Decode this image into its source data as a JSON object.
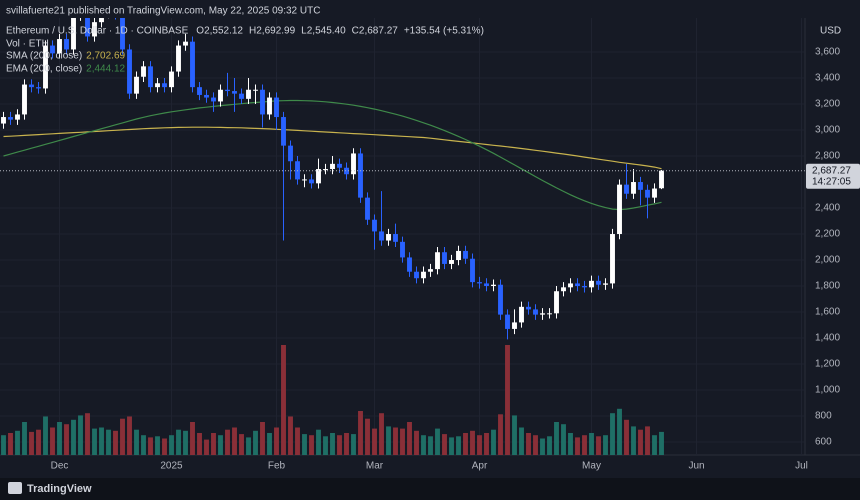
{
  "chart_data": {
    "type": "candlestick",
    "published": "svillafuerte21 published on TradingView.com, May 22, 2025 09:32 UTC",
    "symbol": "Ethereum / U.S. Dollar · 1D · COINBASE",
    "ohlc_legend": [
      {
        "label": "O",
        "value": "2,552.12"
      },
      {
        "label": "H",
        "value": "2,692.99"
      },
      {
        "label": "L",
        "value": "2,545.40"
      },
      {
        "label": "C",
        "value": "2,687.27"
      }
    ],
    "change": "+135.54 (+5.31%)",
    "volume_label": "Vol · ETH",
    "currency": "USD",
    "footer": "TradingView",
    "up_color": "#ffffff",
    "down_color": "#2962ff",
    "vol_up_color": "#1f6f66",
    "vol_down_color": "#8a2f38",
    "grid": true,
    "categories": [
      null,
      null,
      null,
      null,
      null,
      null,
      null,
      null,
      "Dec",
      null,
      null,
      null,
      null,
      null,
      null,
      null,
      null,
      null,
      null,
      null,
      null,
      null,
      null,
      null,
      "2025",
      null,
      null,
      null,
      null,
      null,
      null,
      null,
      null,
      null,
      null,
      null,
      null,
      null,
      null,
      "Feb",
      null,
      null,
      null,
      null,
      null,
      null,
      null,
      null,
      null,
      null,
      null,
      null,
      null,
      "Mar",
      null,
      null,
      null,
      null,
      null,
      null,
      null,
      null,
      null,
      null,
      null,
      null,
      null,
      null,
      "Apr",
      null,
      null,
      null,
      null,
      null,
      null,
      null,
      null,
      null,
      null,
      null,
      null,
      null,
      null,
      null,
      "May",
      null,
      null,
      null,
      null,
      null,
      null,
      null,
      null,
      null,
      null,
      null,
      null,
      null,
      null,
      "Jun",
      null,
      null,
      null,
      null,
      null,
      null,
      null,
      null,
      null,
      null,
      null,
      null,
      null,
      null,
      "Jul"
    ],
    "open": [
      3050,
      3100,
      3080,
      3120,
      3350,
      3330,
      3320,
      3650,
      3590,
      3700,
      3620,
      3880,
      4000,
      3720,
      3830,
      3900,
      3960,
      3890,
      3620,
      3280,
      3410,
      3490,
      3330,
      3360,
      3330,
      3450,
      3650,
      3680,
      3330,
      3270,
      3250,
      3220,
      3310,
      3300,
      3280,
      3240,
      3310,
      3310,
      3120,
      3250,
      3100,
      2880,
      2760,
      2620,
      2620,
      2590,
      2700,
      2700,
      2740,
      2710,
      2660,
      2820,
      2480,
      2310,
      2220,
      2150,
      2200,
      2140,
      2020,
      1910,
      1860,
      1910,
      1930,
      2060,
      1970,
      2000,
      2070,
      2010,
      1830,
      1820,
      1800,
      1810,
      1580,
      1470,
      1520,
      1640,
      1620,
      1580,
      1590,
      1590,
      1760,
      1790,
      1820,
      1800,
      1790,
      1840,
      1810,
      1820,
      2200,
      2580,
      2510,
      2600,
      2540,
      2480,
      2552.12,
      null,
      null,
      null,
      null,
      null,
      null,
      null,
      null,
      null,
      null,
      null,
      null,
      null,
      null,
      null,
      null,
      null,
      null,
      null,
      null
    ],
    "high": [
      3140,
      3140,
      3160,
      3390,
      3390,
      3370,
      3690,
      3690,
      3740,
      3740,
      3920,
      4090,
      4040,
      3870,
      3940,
      4000,
      4000,
      3930,
      3660,
      3450,
      3530,
      3530,
      3400,
      3400,
      3490,
      3690,
      3740,
      3720,
      3370,
      3310,
      3290,
      3350,
      3440,
      3400,
      3320,
      3400,
      3350,
      3350,
      3290,
      3290,
      3140,
      2920,
      2800,
      2660,
      2660,
      2780,
      2740,
      2800,
      2780,
      2750,
      2860,
      2860,
      2520,
      2350,
      2530,
      2240,
      2280,
      2180,
      2060,
      1950,
      1950,
      1970,
      2100,
      2100,
      2040,
      2110,
      2110,
      2050,
      1870,
      1860,
      1850,
      1850,
      1620,
      1620,
      1680,
      1680,
      1660,
      1630,
      1630,
      1800,
      1830,
      1860,
      1860,
      1840,
      1880,
      1880,
      1860,
      2240,
      2620,
      2740,
      2700,
      2640,
      2580,
      2590,
      2692.99,
      null,
      null,
      null,
      null,
      null,
      null,
      null,
      null,
      null,
      null,
      null,
      null,
      null,
      null,
      null,
      null,
      null,
      null,
      null,
      null
    ],
    "low": [
      3010,
      3040,
      3040,
      3080,
      3290,
      3280,
      3280,
      3550,
      3550,
      3580,
      3580,
      3840,
      3680,
      3680,
      3790,
      3860,
      3850,
      3580,
      3240,
      3240,
      3370,
      3290,
      3290,
      3290,
      3290,
      3410,
      3610,
      3290,
      3230,
      3210,
      3140,
      3180,
      3260,
      3140,
      3200,
      3200,
      3200,
      3020,
      3080,
      3000,
      2150,
      2620,
      2580,
      2560,
      2550,
      2550,
      2660,
      2660,
      2670,
      2620,
      2620,
      2440,
      2270,
      2080,
      2110,
      2110,
      2100,
      1980,
      1870,
      1820,
      1820,
      1870,
      1890,
      1930,
      1930,
      1960,
      1970,
      1790,
      1780,
      1760,
      1760,
      1540,
      1390,
      1430,
      1480,
      1580,
      1540,
      1540,
      1550,
      1550,
      1720,
      1750,
      1760,
      1750,
      1750,
      1770,
      1770,
      1780,
      2160,
      2470,
      2470,
      2420,
      2320,
      2440,
      2545.4,
      null,
      null,
      null,
      null,
      null,
      null,
      null,
      null,
      null,
      null,
      null,
      null,
      null,
      null,
      null,
      null,
      null,
      null,
      null,
      null
    ],
    "close": [
      3100,
      3080,
      3120,
      3350,
      3330,
      3320,
      3650,
      3590,
      3700,
      3620,
      3880,
      4000,
      3720,
      3830,
      3900,
      3960,
      3890,
      3620,
      3280,
      3410,
      3490,
      3330,
      3360,
      3330,
      3450,
      3650,
      3680,
      3330,
      3270,
      3250,
      3220,
      3310,
      3300,
      3280,
      3240,
      3310,
      3310,
      3120,
      3250,
      3100,
      2880,
      2760,
      2620,
      2620,
      2590,
      2700,
      2700,
      2740,
      2710,
      2660,
      2820,
      2480,
      2310,
      2220,
      2150,
      2200,
      2140,
      2020,
      1910,
      1860,
      1910,
      1930,
      2060,
      1970,
      2000,
      2070,
      2010,
      1830,
      1820,
      1800,
      1810,
      1580,
      1470,
      1520,
      1640,
      1620,
      1580,
      1590,
      1590,
      1760,
      1790,
      1820,
      1800,
      1790,
      1840,
      1810,
      1820,
      2200,
      2580,
      2510,
      2600,
      2540,
      2480,
      2550,
      2687.27,
      null,
      null,
      null,
      null,
      null,
      null,
      null,
      null,
      null,
      null,
      null,
      null,
      null,
      null,
      null,
      null,
      null,
      null,
      null,
      null
    ],
    "volume": [
      180,
      200,
      220,
      300,
      210,
      230,
      350,
      250,
      300,
      280,
      320,
      360,
      380,
      240,
      250,
      230,
      220,
      330,
      350,
      230,
      180,
      160,
      170,
      150,
      180,
      230,
      220,
      300,
      200,
      140,
      200,
      180,
      230,
      250,
      190,
      160,
      220,
      300,
      200,
      250,
      1000,
      350,
      250,
      190,
      180,
      230,
      170,
      200,
      180,
      200,
      190,
      400,
      330,
      240,
      380,
      260,
      250,
      240,
      300,
      220,
      180,
      170,
      240,
      190,
      160,
      170,
      200,
      220,
      180,
      200,
      230,
      370,
      1000,
      360,
      250,
      200,
      180,
      150,
      170,
      300,
      280,
      200,
      160,
      180,
      200,
      170,
      180,
      380,
      420,
      320,
      260,
      230,
      260,
      180,
      210,
      null,
      null,
      null,
      null,
      null,
      null,
      null,
      null,
      null,
      null,
      null,
      null,
      null,
      null,
      null,
      null,
      null,
      null,
      null,
      null
    ],
    "indicators": [
      {
        "name": "SMA (200, close)",
        "color": "#c8b34e",
        "last": "2,702.69",
        "values": [
          2950,
          2953,
          2956,
          2959,
          2962,
          2965,
          2968,
          2971,
          2974,
          2977,
          2980,
          2983,
          2986,
          2989,
          2992,
          2995,
          2998,
          3001,
          3004,
          3007,
          3010,
          3013,
          3015,
          3017,
          3019,
          3020,
          3021,
          3022,
          3022,
          3022,
          3021,
          3020,
          3019,
          3018,
          3017,
          3015,
          3013,
          3011,
          3009,
          3006,
          3003,
          3000,
          2997,
          2994,
          2991,
          2988,
          2985,
          2982,
          2979,
          2976,
          2973,
          2970,
          2967,
          2964,
          2961,
          2958,
          2955,
          2952,
          2949,
          2946,
          2943,
          2937,
          2931,
          2925,
          2919,
          2913,
          2907,
          2901,
          2895,
          2889,
          2883,
          2877,
          2871,
          2865,
          2858,
          2851,
          2844,
          2837,
          2830,
          2823,
          2816,
          2808,
          2800,
          2792,
          2784,
          2776,
          2768,
          2760,
          2752,
          2745,
          2738,
          2731,
          2723,
          2715,
          2702.69,
          null,
          null,
          null,
          null,
          null,
          null,
          null,
          null,
          null,
          null,
          null,
          null,
          null,
          null,
          null,
          null,
          null,
          null,
          null,
          null
        ]
      },
      {
        "name": "EMA (200, close)",
        "color": "#3f8a4a",
        "last": "2,444.12",
        "values": [
          2800,
          2815,
          2830,
          2845,
          2860,
          2875,
          2890,
          2905,
          2920,
          2935,
          2950,
          2965,
          2980,
          2995,
          3010,
          3025,
          3040,
          3055,
          3070,
          3085,
          3098,
          3110,
          3121,
          3131,
          3140,
          3148,
          3156,
          3163,
          3170,
          3176,
          3182,
          3188,
          3193,
          3198,
          3203,
          3208,
          3212,
          3216,
          3220,
          3224,
          3226,
          3227,
          3227,
          3226,
          3224,
          3221,
          3217,
          3212,
          3206,
          3199,
          3191,
          3182,
          3172,
          3161,
          3149,
          3136,
          3122,
          3107,
          3091,
          3074,
          3056,
          3037,
          3017,
          2996,
          2974,
          2951,
          2927,
          2902,
          2876,
          2849,
          2821,
          2792,
          2762,
          2732,
          2702,
          2672,
          2642,
          2612,
          2583,
          2555,
          2528,
          2502,
          2478,
          2456,
          2436,
          2418,
          2403,
          2392,
          2388,
          2392,
          2400,
          2410,
          2422,
          2432,
          2444.12,
          null,
          null,
          null,
          null,
          null,
          null,
          null,
          null,
          null,
          null,
          null,
          null,
          null,
          null,
          null,
          null,
          null,
          null,
          null,
          null
        ]
      }
    ],
    "last_price": {
      "value": 2687.27,
      "label": "2,687.27",
      "countdown": "14:27:05"
    },
    "ylim": [
      500,
      3862
    ],
    "yticks": [
      600,
      800,
      {
        "value": 1000,
        "label": "1,000"
      },
      {
        "value": 1200,
        "label": "1,200"
      },
      {
        "value": 1400,
        "label": "1,400"
      },
      {
        "value": 1600,
        "label": "1,600"
      },
      {
        "value": 1800,
        "label": "1,800"
      },
      {
        "value": 2000,
        "label": "2,000"
      },
      {
        "value": 2200,
        "label": "2,200"
      },
      {
        "value": 2400,
        "label": "2,400"
      },
      {
        "value": 2800,
        "label": "2,800"
      },
      {
        "value": 3000,
        "label": "3,000"
      },
      {
        "value": 3200,
        "label": "3,200"
      },
      {
        "value": 3400,
        "label": "3,400"
      },
      {
        "value": 3600,
        "label": "3,600"
      }
    ]
  }
}
